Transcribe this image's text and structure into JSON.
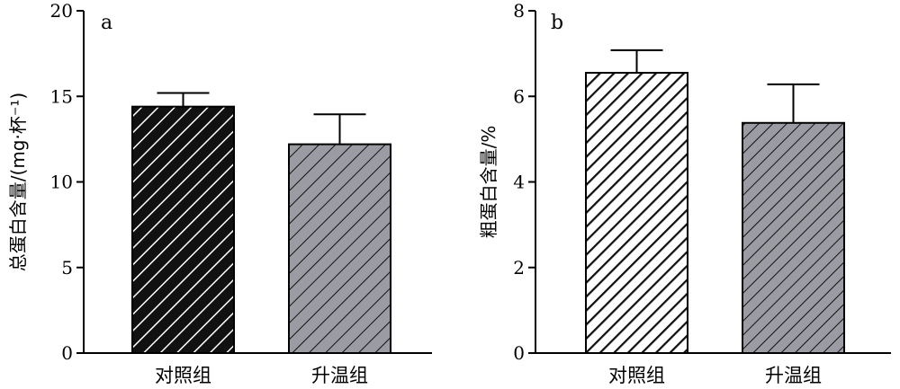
{
  "chart_data": [
    {
      "type": "bar",
      "panel": "a",
      "categories": [
        "对照组",
        "升温组"
      ],
      "values": [
        14.4,
        12.2
      ],
      "errors": [
        0.8,
        1.75
      ],
      "ylabel": "总蛋白含量/(mg·杯⁻¹)",
      "ylim": [
        0,
        20
      ],
      "yticks": [
        0,
        5,
        10,
        15,
        20
      ],
      "bar_fill": [
        "#111111",
        "#9b9ba3"
      ],
      "hatch_color": [
        "#ffffff",
        "#111111"
      ]
    },
    {
      "type": "bar",
      "panel": "b",
      "categories": [
        "对照组",
        "升温组"
      ],
      "values": [
        6.55,
        5.38
      ],
      "errors": [
        0.53,
        0.9
      ],
      "ylabel": "粗蛋白含量/%",
      "ylim": [
        0,
        8
      ],
      "yticks": [
        0,
        2,
        4,
        6,
        8
      ],
      "bar_fill": [
        "#ffffff",
        "#9b9ba3"
      ],
      "hatch_color": [
        "#111111",
        "#111111"
      ]
    }
  ]
}
